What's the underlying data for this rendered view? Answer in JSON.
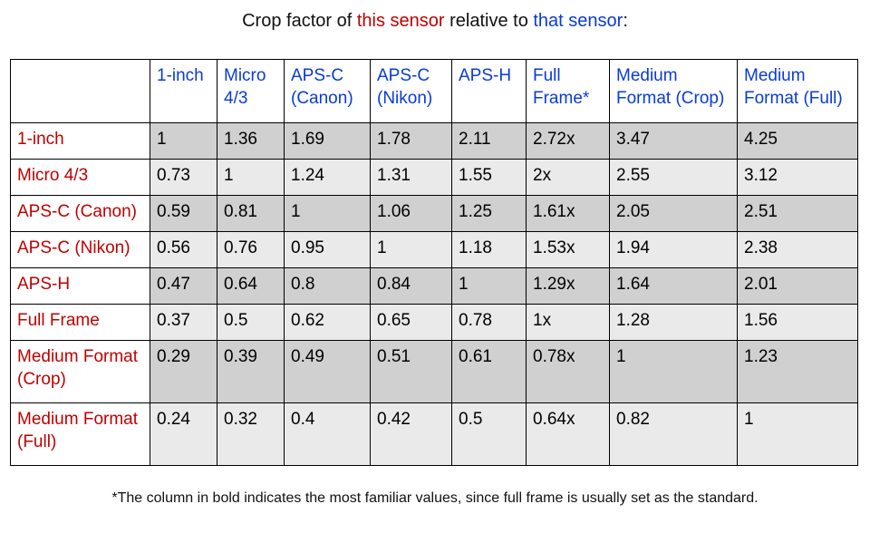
{
  "title": {
    "prefix": "Crop factor of ",
    "this_sensor": "this sensor",
    "middle": " relative to ",
    "that_sensor": "that sensor",
    "suffix": ":"
  },
  "table": {
    "columns": [
      "1-inch",
      "Micro 4/3",
      "APS-C (Canon)",
      "APS-C (Nikon)",
      "APS-H",
      "Full Frame*",
      "Medium Format (Crop)",
      "Medium Format (Full)"
    ],
    "rows": [
      {
        "label": "1-inch",
        "values": [
          "1",
          "1.36",
          "1.69",
          "1.78",
          "2.11",
          "2.72x",
          "3.47",
          "4.25"
        ]
      },
      {
        "label": "Micro 4/3",
        "values": [
          "0.73",
          "1",
          "1.24",
          "1.31",
          "1.55",
          "2x",
          "2.55",
          "3.12"
        ]
      },
      {
        "label": "APS-C (Canon)",
        "values": [
          "0.59",
          "0.81",
          "1",
          "1.06",
          "1.25",
          "1.61x",
          "2.05",
          "2.51"
        ]
      },
      {
        "label": "APS-C (Nikon)",
        "values": [
          "0.56",
          "0.76",
          "0.95",
          "1",
          "1.18",
          "1.53x",
          "1.94",
          "2.38"
        ]
      },
      {
        "label": "APS-H",
        "values": [
          "0.47",
          "0.64",
          "0.8",
          "0.84",
          "1",
          "1.29x",
          "1.64",
          "2.01"
        ]
      },
      {
        "label": "Full Frame",
        "values": [
          "0.37",
          "0.5",
          "0.62",
          "0.65",
          "0.78",
          "1x",
          "1.28",
          "1.56"
        ]
      },
      {
        "label": "Medium Format (Crop)",
        "values": [
          "0.29",
          "0.39",
          "0.49",
          "0.51",
          "0.61",
          "0.78x",
          "1",
          "1.23"
        ]
      },
      {
        "label": "Medium Format (Full)",
        "values": [
          "0.24",
          "0.32",
          "0.4",
          "0.42",
          "0.5",
          "0.64x",
          "0.82",
          "1"
        ]
      }
    ]
  },
  "footnote": "*The column in bold indicates the most familiar values, since full frame is usually set as the standard.",
  "colors": {
    "column_header": "#0a3bd7",
    "row_header": "#c00000",
    "row_dark": "#d0d0d0",
    "row_light": "#eaeaea"
  }
}
